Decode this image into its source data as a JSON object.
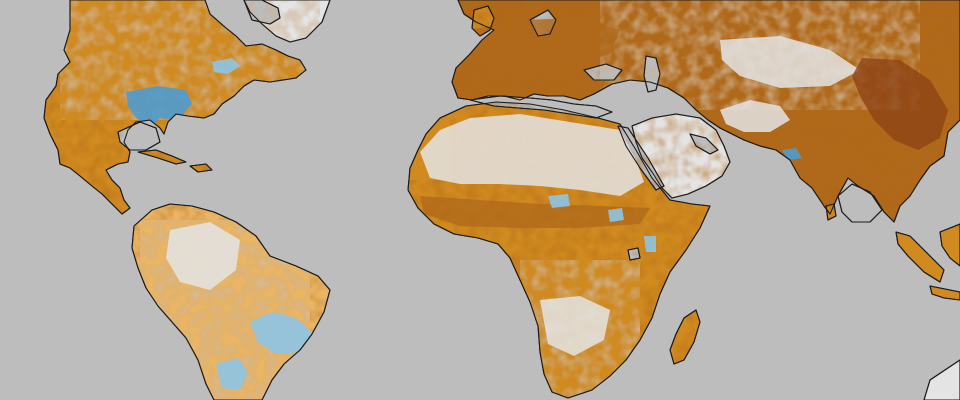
{
  "map": {
    "projection": "world-equirectangular-crop",
    "has_text_labels": false,
    "colors": {
      "ocean": "#bdbdbd",
      "no_change": "#e4e4e4",
      "increase_light": "#eab665",
      "increase_medium": "#d08a1f",
      "increase_strong": "#b0691a",
      "increase_max": "#8f4414",
      "decrease_light": "#8ec4e4",
      "decrease_medium": "#4e9bd0",
      "coastline": "#1c1c1c"
    },
    "regions": [
      {
        "name": "north-america",
        "dominant": "increase_medium"
      },
      {
        "name": "south-america",
        "dominant": "increase_light"
      },
      {
        "name": "europe",
        "dominant": "increase_strong"
      },
      {
        "name": "africa",
        "dominant": "increase_medium"
      },
      {
        "name": "middle-east",
        "dominant": "no_change"
      },
      {
        "name": "asia",
        "dominant": "increase_strong"
      },
      {
        "name": "madagascar",
        "dominant": "increase_medium"
      },
      {
        "name": "southeast-asia",
        "dominant": "increase_medium"
      },
      {
        "name": "greenland",
        "dominant": "no_change"
      }
    ],
    "highlights": [
      {
        "name": "eastern-china",
        "level": "increase_max"
      },
      {
        "name": "northern-india",
        "level": "increase_strong"
      },
      {
        "name": "southeastern-us",
        "level": "decrease_medium"
      },
      {
        "name": "eastern-brazil",
        "level": "decrease_light"
      },
      {
        "name": "sahara",
        "level": "no_change"
      },
      {
        "name": "arabian-peninsula",
        "level": "no_change"
      }
    ]
  }
}
